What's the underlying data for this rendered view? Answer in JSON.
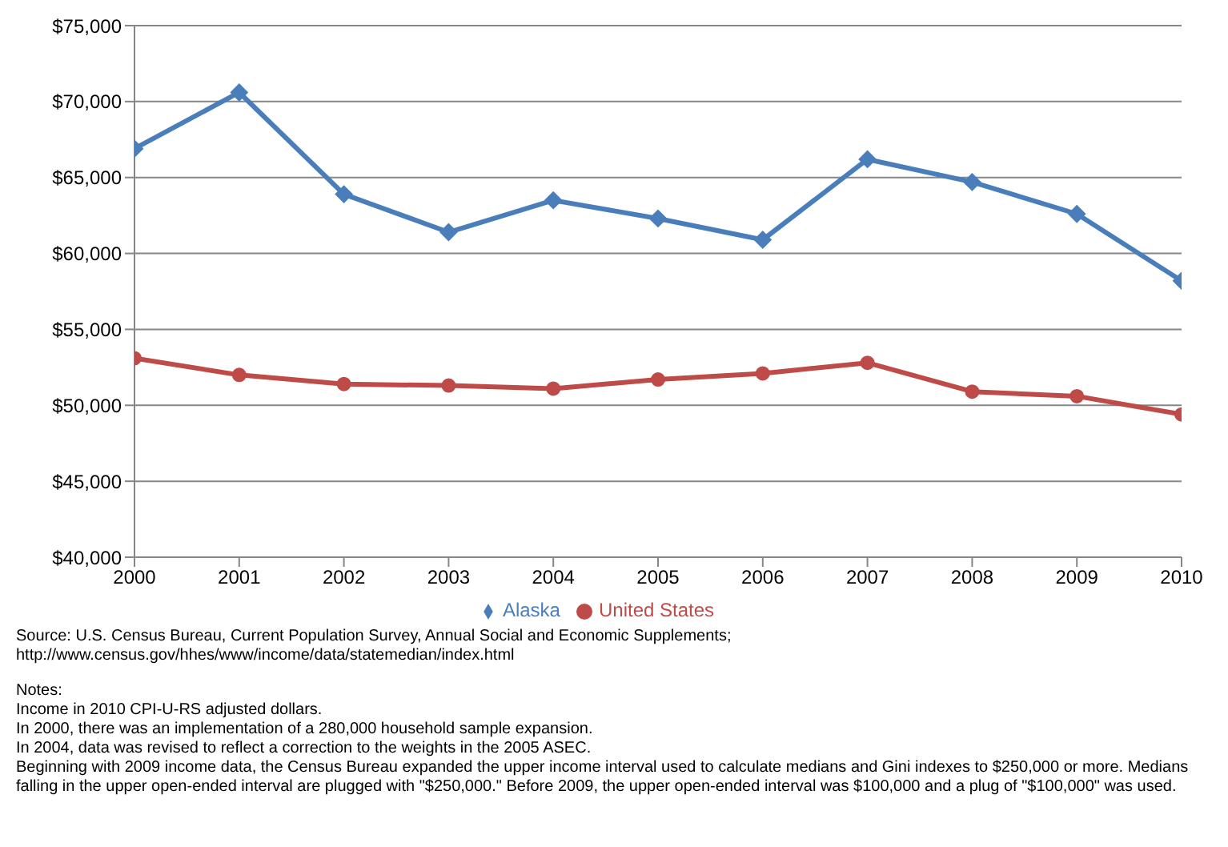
{
  "chart_data": {
    "type": "line",
    "x": [
      2000,
      2001,
      2002,
      2003,
      2004,
      2005,
      2006,
      2007,
      2008,
      2009,
      2010
    ],
    "xlim": [
      2000,
      2010
    ],
    "xticks": [
      2000,
      2001,
      2002,
      2003,
      2004,
      2005,
      2006,
      2007,
      2008,
      2009,
      2010
    ],
    "ylim": [
      40000,
      75000
    ],
    "yticks": [
      {
        "value": 40000,
        "label": "$40,000"
      },
      {
        "value": 45000,
        "label": "$45,000"
      },
      {
        "value": 50000,
        "label": "$50,000"
      },
      {
        "value": 55000,
        "label": "$55,000"
      },
      {
        "value": 60000,
        "label": "$60,000"
      },
      {
        "value": 65000,
        "label": "$65,000"
      },
      {
        "value": 70000,
        "label": "$70,000"
      },
      {
        "value": 75000,
        "label": "$75,000"
      }
    ],
    "grid": "y",
    "legend": "bottom",
    "series": [
      {
        "name": "Alaska",
        "color": "#4a7ebb",
        "marker": "diamond",
        "values": [
          66900,
          70600,
          63900,
          61400,
          63500,
          62300,
          60900,
          66200,
          64700,
          62600,
          58200
        ]
      },
      {
        "name": "United States",
        "color": "#be4b48",
        "marker": "circle",
        "values": [
          53100,
          52000,
          51400,
          51300,
          51100,
          51700,
          52100,
          52800,
          50900,
          50600,
          49400
        ]
      }
    ],
    "annotations": [
      "Source: U.S. Census Bureau, Current Population Survey, Annual Social and Economic Supplements; http://www.census.gov/hhes/www/income/data/statemedian/index.html",
      "Notes:",
      "Income in 2010 CPI-U-RS adjusted dollars.",
      "In 2000, there was an implementation of a 280,000 household sample expansion.",
      "In 2004, data was revised to reflect a correction to the weights in the 2005 ASEC.",
      "Beginning with 2009 income data, the Census Bureau expanded the upper income interval used to calculate medians and Gini indexes to $250,000 or more. Medians falling in the upper open-ended interval are plugged with \"$250,000.\" Before 2009, the upper open-ended interval was $100,000 and a plug of \"$100,000\" was used."
    ]
  }
}
